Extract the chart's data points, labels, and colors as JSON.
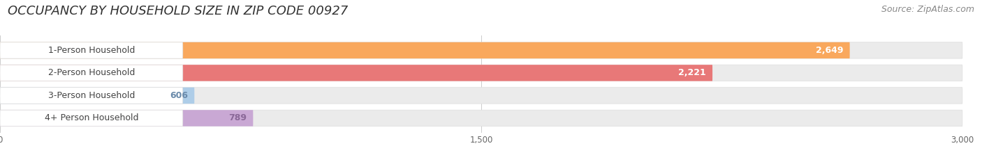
{
  "title": "OCCUPANCY BY HOUSEHOLD SIZE IN ZIP CODE 00927",
  "source_text": "Source: ZipAtlas.com",
  "categories": [
    "1-Person Household",
    "2-Person Household",
    "3-Person Household",
    "4+ Person Household"
  ],
  "values": [
    2649,
    2221,
    606,
    789
  ],
  "bar_colors": [
    "#F9A85D",
    "#E87878",
    "#AECDE8",
    "#C9A8D4"
  ],
  "bar_edge_colors": [
    "#E8944A",
    "#D46060",
    "#8BAEC8",
    "#A888B8"
  ],
  "value_label_colors": [
    "#FFFFFF",
    "#FFFFFF",
    "#6A8AAA",
    "#8A6898"
  ],
  "xlim": [
    0,
    3000
  ],
  "xticks": [
    0,
    1500,
    3000
  ],
  "background_color": "#FFFFFF",
  "bar_bg_color": "#EEEEEE",
  "title_fontsize": 13,
  "source_fontsize": 9,
  "label_fontsize": 9,
  "value_fontsize": 9
}
